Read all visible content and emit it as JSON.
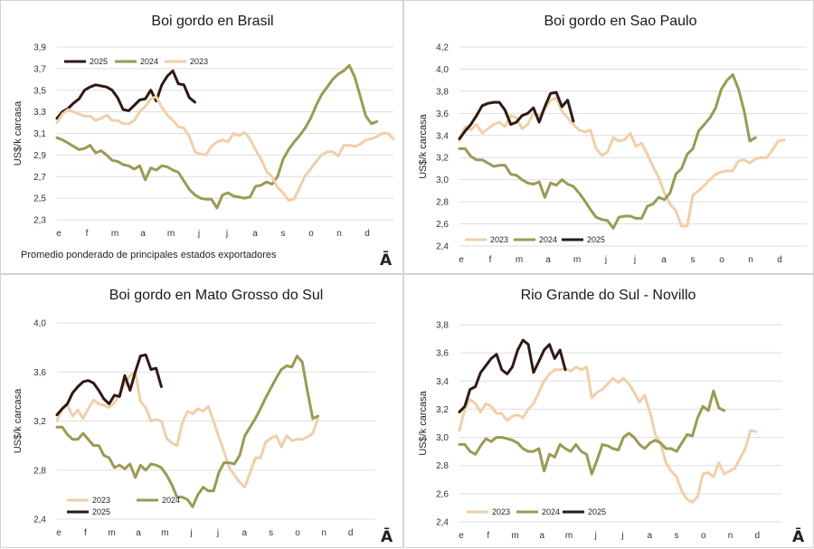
{
  "colors": {
    "y2023": "#f0cfaa",
    "y2024": "#9a9a55",
    "y2025": "#2e1a14",
    "grid": "#dedede"
  },
  "logo_mark": "Ā",
  "month_labels": [
    "e",
    "f",
    "m",
    "a",
    "m",
    "j",
    "j",
    "a",
    "s",
    "o",
    "n",
    "d"
  ],
  "chart_data": [
    {
      "type": "line",
      "title": "Boi gordo en Brasil",
      "ylabel": "US$/k carcasa",
      "ylim": [
        2.3,
        3.9
      ],
      "yticks": [
        "2,3",
        "2,5",
        "2,7",
        "2,9",
        "3,1",
        "3,3",
        "3,5",
        "3,7",
        "3,9"
      ],
      "note": "Promedio ponderado de principales estados exportadores",
      "legend": "top",
      "series": [
        {
          "name": "2025",
          "key": "y2025",
          "values": [
            3.24,
            3.3,
            3.33,
            3.38,
            3.42,
            3.5,
            3.53,
            3.55,
            3.54,
            3.53,
            3.5,
            3.43,
            3.32,
            3.31,
            3.36,
            3.41,
            3.42,
            3.5,
            3.4,
            3.55,
            3.63,
            3.68,
            3.56,
            3.55,
            3.43,
            3.39
          ]
        },
        {
          "name": "2024",
          "key": "y2024",
          "values": [
            3.06,
            3.04,
            3.01,
            2.98,
            2.95,
            2.96,
            2.99,
            2.92,
            2.94,
            2.9,
            2.85,
            2.84,
            2.81,
            2.8,
            2.77,
            2.8,
            2.67,
            2.78,
            2.76,
            2.8,
            2.79,
            2.76,
            2.74,
            2.66,
            2.58,
            2.53,
            2.5,
            2.49,
            2.49,
            2.41,
            2.53,
            2.55,
            2.52,
            2.51,
            2.5,
            2.51,
            2.61,
            2.62,
            2.65,
            2.63,
            2.7,
            2.86,
            2.95,
            3.02,
            3.08,
            3.15,
            3.24,
            3.36,
            3.46,
            3.53,
            3.6,
            3.65,
            3.68,
            3.73,
            3.62,
            3.44,
            3.26,
            3.19,
            3.21
          ]
        },
        {
          "name": "2023",
          "key": "y2023",
          "values": [
            3.2,
            3.28,
            3.32,
            3.3,
            3.28,
            3.26,
            3.26,
            3.22,
            3.24,
            3.27,
            3.22,
            3.22,
            3.19,
            3.19,
            3.22,
            3.3,
            3.35,
            3.42,
            3.44,
            3.34,
            3.27,
            3.22,
            3.16,
            3.15,
            3.07,
            2.93,
            2.91,
            2.9,
            2.98,
            3.02,
            3.04,
            3.02,
            3.1,
            3.08,
            3.11,
            3.05,
            2.95,
            2.86,
            2.75,
            2.7,
            2.6,
            2.55,
            2.48,
            2.49,
            2.6,
            2.71,
            2.77,
            2.84,
            2.9,
            2.93,
            2.93,
            2.89,
            2.99,
            2.99,
            2.98,
            3.0,
            3.04,
            3.05,
            3.07,
            3.1,
            3.1,
            3.05
          ]
        }
      ]
    },
    {
      "type": "line",
      "title": "Boi gordo en Sao Paulo",
      "ylabel": "US$/k carcasa",
      "ylim": [
        2.4,
        4.2
      ],
      "yticks": [
        "2,4",
        "2,6",
        "2,8",
        "3,0",
        "3,2",
        "3,4",
        "3,6",
        "3,8",
        "4,0",
        "4,2"
      ],
      "legend": "bottom",
      "series": [
        {
          "name": "2023",
          "key": "y2023",
          "values": [
            3.35,
            3.48,
            3.45,
            3.5,
            3.42,
            3.46,
            3.5,
            3.52,
            3.48,
            3.58,
            3.56,
            3.46,
            3.5,
            3.6,
            3.58,
            3.64,
            3.72,
            3.74,
            3.62,
            3.56,
            3.5,
            3.45,
            3.43,
            3.45,
            3.28,
            3.22,
            3.25,
            3.38,
            3.35,
            3.36,
            3.42,
            3.3,
            3.33,
            3.23,
            3.12,
            3.02,
            2.88,
            2.78,
            2.72,
            2.58,
            2.58,
            2.86,
            2.9,
            2.95,
            3.0,
            3.05,
            3.07,
            3.08,
            3.08,
            3.17,
            3.18,
            3.15,
            3.19,
            3.2,
            3.2,
            3.27,
            3.35,
            3.36
          ]
        },
        {
          "name": "2024",
          "key": "y2024",
          "values": [
            3.28,
            3.28,
            3.21,
            3.18,
            3.18,
            3.15,
            3.12,
            3.13,
            3.13,
            3.05,
            3.04,
            3.0,
            2.97,
            2.96,
            2.98,
            2.84,
            2.97,
            2.95,
            3.0,
            2.96,
            2.94,
            2.88,
            2.81,
            2.73,
            2.66,
            2.64,
            2.63,
            2.56,
            2.66,
            2.67,
            2.67,
            2.65,
            2.65,
            2.76,
            2.78,
            2.84,
            2.82,
            2.88,
            3.05,
            3.1,
            3.23,
            3.28,
            3.44,
            3.5,
            3.56,
            3.65,
            3.82,
            3.9,
            3.95,
            3.82,
            3.62,
            3.35,
            3.38
          ]
        },
        {
          "name": "2025",
          "key": "y2025",
          "values": [
            3.37,
            3.44,
            3.5,
            3.58,
            3.67,
            3.69,
            3.7,
            3.7,
            3.63,
            3.5,
            3.52,
            3.58,
            3.6,
            3.65,
            3.52,
            3.66,
            3.78,
            3.79,
            3.66,
            3.72,
            3.53
          ]
        }
      ]
    },
    {
      "type": "line",
      "title": "Boi gordo en Mato Grosso do Sul",
      "ylabel": "US$/k carcasa",
      "ylim": [
        2.4,
        4.0
      ],
      "yticks": [
        "2,4",
        "2,8",
        "3,2",
        "3,6",
        "4,0"
      ],
      "legend": "bottom",
      "series": [
        {
          "name": "2023",
          "key": "y2023",
          "values": [
            3.2,
            3.3,
            3.33,
            3.24,
            3.29,
            3.22,
            3.3,
            3.37,
            3.34,
            3.33,
            3.31,
            3.35,
            3.42,
            3.5,
            3.57,
            3.6,
            3.36,
            3.31,
            3.2,
            3.21,
            3.2,
            3.06,
            3.02,
            3.0,
            3.18,
            3.28,
            3.26,
            3.3,
            3.28,
            3.32,
            3.2,
            3.07,
            2.95,
            2.82,
            2.76,
            2.7,
            2.66,
            2.78,
            2.9,
            2.9,
            3.03,
            3.06,
            3.08,
            2.99,
            3.08,
            3.04,
            3.05,
            3.05,
            3.07,
            3.1,
            3.22
          ]
        },
        {
          "name": "2024",
          "key": "y2024",
          "values": [
            3.15,
            3.15,
            3.09,
            3.05,
            3.05,
            3.1,
            3.05,
            3.0,
            3.0,
            2.92,
            2.9,
            2.82,
            2.84,
            2.81,
            2.85,
            2.74,
            2.84,
            2.8,
            2.85,
            2.84,
            2.82,
            2.76,
            2.68,
            2.58,
            2.58,
            2.56,
            2.5,
            2.6,
            2.66,
            2.63,
            2.63,
            2.78,
            2.86,
            2.86,
            2.85,
            2.92,
            3.08,
            3.15,
            3.22,
            3.3,
            3.39,
            3.47,
            3.55,
            3.62,
            3.65,
            3.64,
            3.73,
            3.68,
            3.44,
            3.22,
            3.24
          ]
        },
        {
          "name": "2025",
          "key": "y2025",
          "values": [
            3.25,
            3.3,
            3.34,
            3.43,
            3.48,
            3.52,
            3.53,
            3.51,
            3.45,
            3.38,
            3.34,
            3.41,
            3.4,
            3.57,
            3.45,
            3.6,
            3.73,
            3.74,
            3.62,
            3.63,
            3.48
          ]
        }
      ]
    },
    {
      "type": "line",
      "title": "Rio Grande do Sul - Novillo",
      "ylabel": "US$/k carcasa",
      "ylim": [
        2.4,
        3.8
      ],
      "yticks": [
        "2,4",
        "2,6",
        "2,8",
        "3,0",
        "3,2",
        "3,4",
        "3,6",
        "3,8"
      ],
      "legend": "bottom",
      "series": [
        {
          "name": "2023",
          "key": "y2023",
          "values": [
            3.05,
            3.2,
            3.27,
            3.24,
            3.18,
            3.24,
            3.22,
            3.17,
            3.17,
            3.12,
            3.15,
            3.16,
            3.14,
            3.2,
            3.24,
            3.32,
            3.4,
            3.45,
            3.48,
            3.48,
            3.49,
            3.47,
            3.5,
            3.48,
            3.5,
            3.28,
            3.32,
            3.34,
            3.38,
            3.42,
            3.39,
            3.42,
            3.38,
            3.32,
            3.25,
            3.3,
            3.18,
            3.02,
            2.96,
            2.82,
            2.76,
            2.72,
            2.62,
            2.56,
            2.54,
            2.58,
            2.74,
            2.75,
            2.72,
            2.82,
            2.74,
            2.76,
            2.78,
            2.85,
            2.92,
            3.05,
            3.04
          ]
        },
        {
          "name": "2024",
          "key": "y2024",
          "values": [
            2.95,
            2.95,
            2.9,
            2.88,
            2.94,
            2.99,
            2.97,
            3.0,
            3.0,
            2.99,
            2.98,
            2.96,
            2.92,
            2.9,
            2.9,
            2.92,
            2.76,
            2.88,
            2.86,
            2.95,
            2.92,
            2.9,
            2.95,
            2.9,
            2.88,
            2.74,
            2.84,
            2.95,
            2.94,
            2.92,
            2.91,
            3.0,
            3.03,
            3.0,
            2.95,
            2.92,
            2.96,
            2.98,
            2.96,
            2.92,
            2.92,
            2.9,
            2.96,
            3.02,
            3.01,
            3.14,
            3.22,
            3.19,
            3.33,
            3.21,
            3.19
          ]
        },
        {
          "name": "2025",
          "key": "y2025",
          "values": [
            3.18,
            3.22,
            3.34,
            3.36,
            3.46,
            3.51,
            3.56,
            3.59,
            3.48,
            3.45,
            3.5,
            3.62,
            3.69,
            3.66,
            3.46,
            3.54,
            3.62,
            3.66,
            3.56,
            3.62,
            3.48
          ]
        }
      ]
    }
  ]
}
